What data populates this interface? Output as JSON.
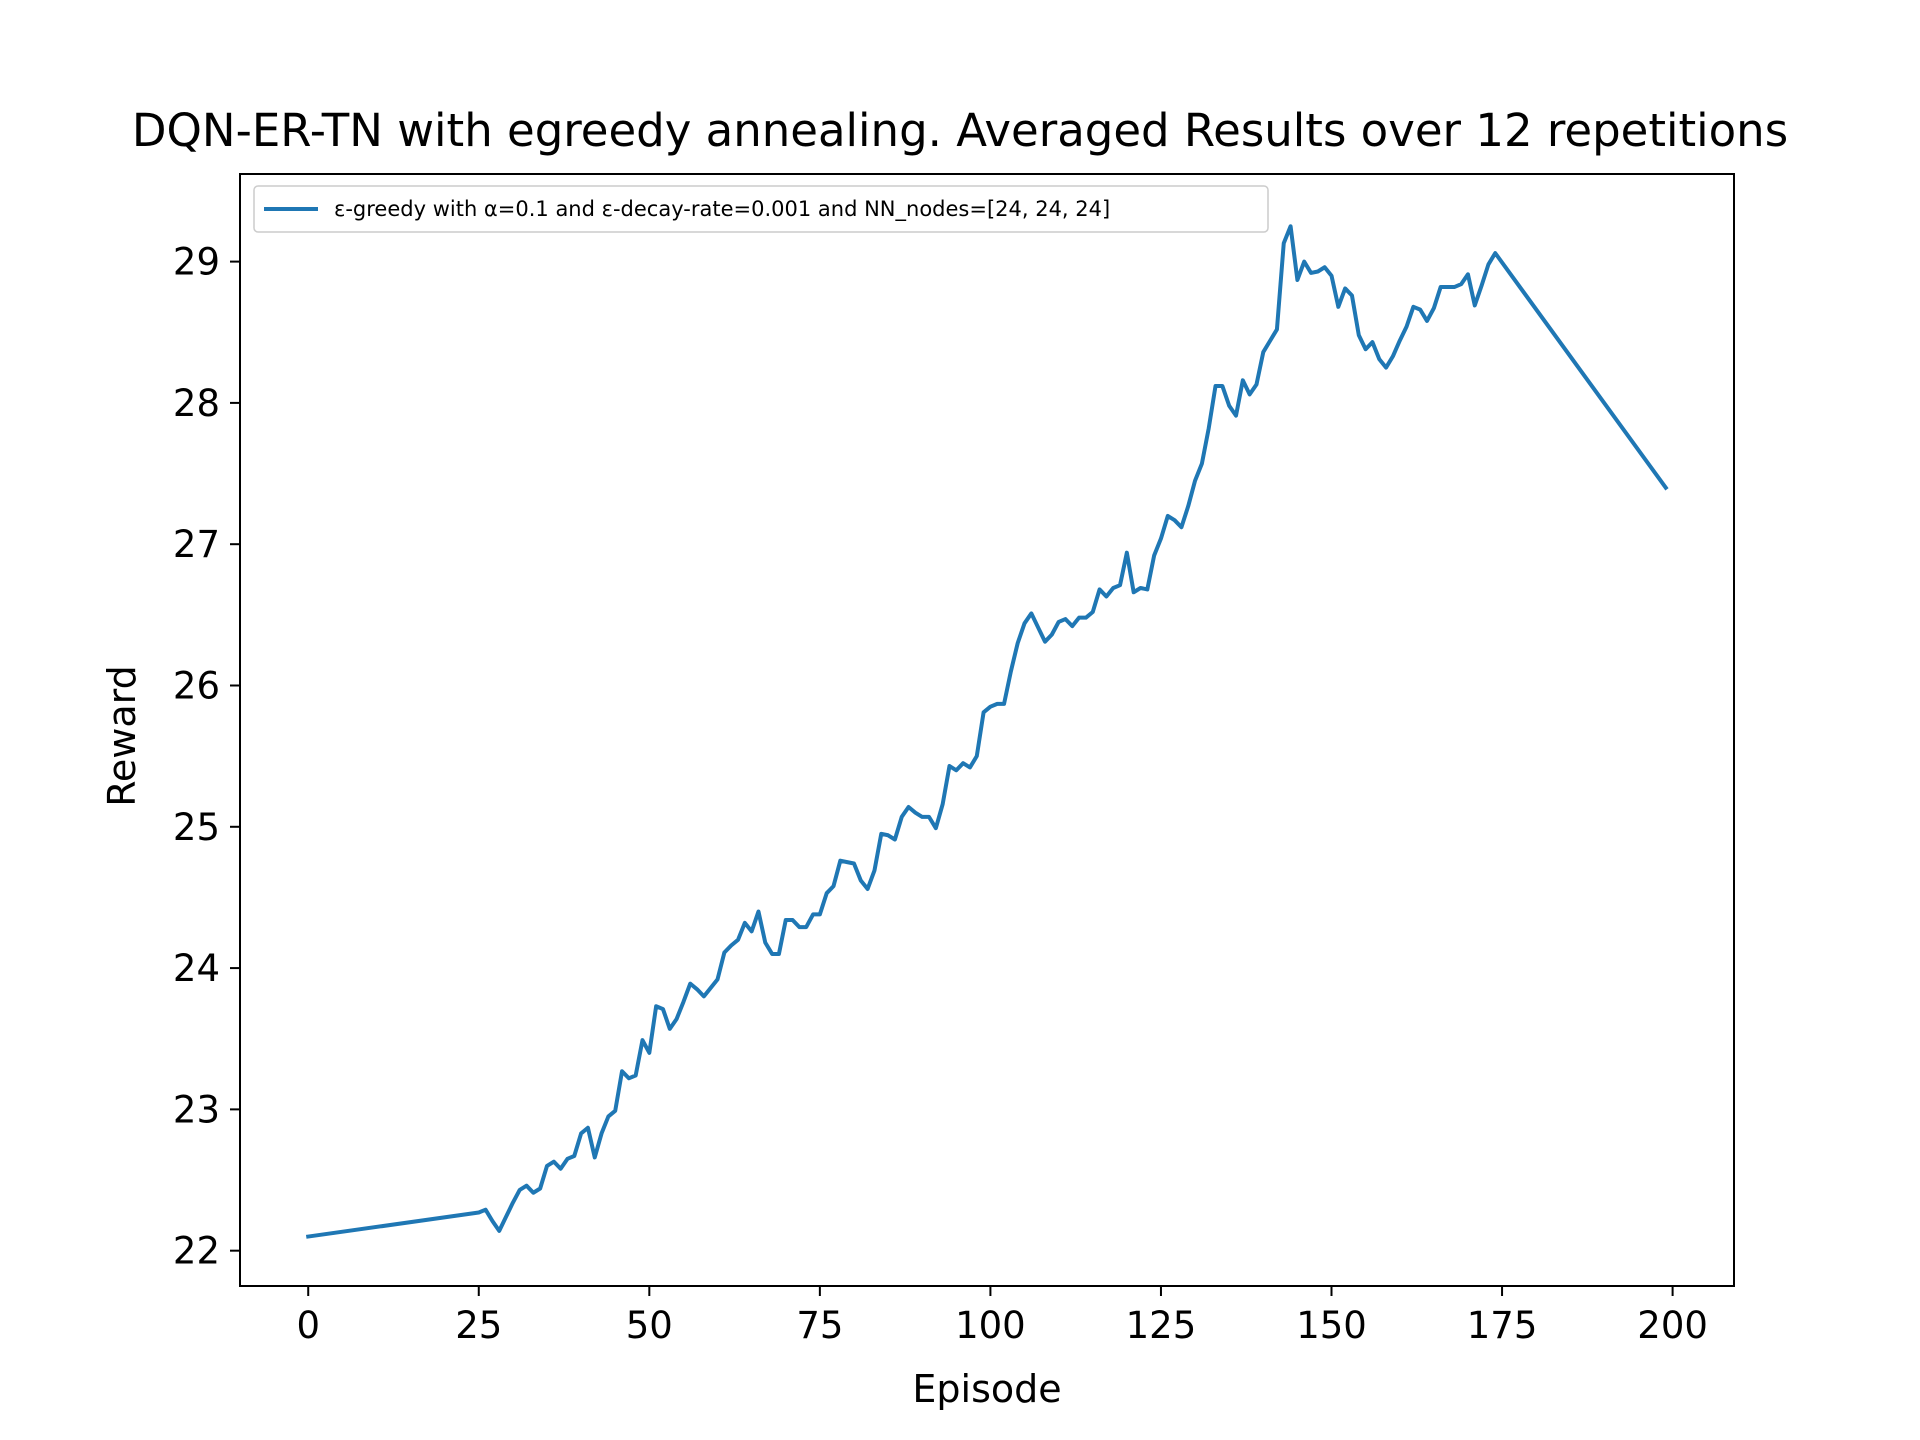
{
  "chart_data": {
    "type": "line",
    "title": "DQN-ER-TN with egreedy annealing. Averaged Results over 12 repetitions",
    "xlabel": "Episode",
    "ylabel": "Reward",
    "xlim": [
      -10,
      209
    ],
    "ylim": [
      21.75,
      29.62
    ],
    "xticks": [
      0,
      25,
      50,
      75,
      100,
      125,
      150,
      175,
      200
    ],
    "yticks": [
      22,
      23,
      24,
      25,
      26,
      27,
      28,
      29
    ],
    "xtick_labels": [
      "0",
      "25",
      "50",
      "75",
      "100",
      "125",
      "150",
      "175",
      "200"
    ],
    "ytick_labels": [
      "22",
      "23",
      "24",
      "25",
      "26",
      "27",
      "28",
      "29"
    ],
    "grid": false,
    "legend_position": "top-left",
    "series": [
      {
        "name": "ε-greedy with α=0.1 and ε-decay-rate=0.001 and NN_nodes=[24, 24, 24]",
        "color": "#1f77b4",
        "x": [
          0,
          25,
          26,
          27,
          28,
          29,
          30,
          31,
          32,
          33,
          34,
          35,
          36,
          37,
          38,
          39,
          40,
          41,
          42,
          43,
          44,
          45,
          46,
          47,
          48,
          49,
          50,
          51,
          52,
          53,
          54,
          55,
          56,
          57,
          58,
          59,
          60,
          61,
          62,
          63,
          64,
          65,
          66,
          67,
          68,
          69,
          70,
          71,
          72,
          73,
          74,
          75,
          76,
          77,
          78,
          79,
          80,
          81,
          82,
          83,
          84,
          85,
          86,
          87,
          88,
          89,
          90,
          91,
          92,
          93,
          94,
          95,
          96,
          97,
          98,
          99,
          100,
          101,
          102,
          103,
          104,
          105,
          106,
          107,
          108,
          109,
          110,
          111,
          112,
          113,
          114,
          115,
          116,
          117,
          118,
          119,
          120,
          121,
          122,
          123,
          124,
          125,
          126,
          127,
          128,
          129,
          130,
          131,
          132,
          133,
          134,
          135,
          136,
          137,
          138,
          139,
          140,
          141,
          142,
          143,
          144,
          145,
          146,
          147,
          148,
          149,
          150,
          151,
          152,
          153,
          154,
          155,
          156,
          157,
          158,
          159,
          160,
          161,
          162,
          163,
          164,
          165,
          166,
          167,
          168,
          169,
          170,
          171,
          172,
          173,
          174,
          199
        ],
        "y": [
          22.1,
          22.27,
          22.29,
          22.21,
          22.14,
          22.24,
          22.34,
          22.43,
          22.46,
          22.41,
          22.44,
          22.6,
          22.63,
          22.58,
          22.65,
          22.67,
          22.83,
          22.87,
          22.66,
          22.83,
          22.95,
          22.99,
          23.27,
          23.22,
          23.24,
          23.49,
          23.4,
          23.73,
          23.71,
          23.57,
          23.64,
          23.76,
          23.89,
          23.85,
          23.8,
          23.86,
          23.92,
          24.11,
          24.16,
          24.2,
          24.32,
          24.26,
          24.4,
          24.18,
          24.1,
          24.1,
          24.34,
          24.34,
          24.29,
          24.29,
          24.38,
          24.38,
          24.53,
          24.58,
          24.76,
          24.75,
          24.74,
          24.62,
          24.56,
          24.69,
          24.95,
          24.94,
          24.91,
          25.07,
          25.14,
          25.1,
          25.07,
          25.07,
          24.99,
          25.16,
          25.43,
          25.4,
          25.45,
          25.42,
          25.5,
          25.81,
          25.85,
          25.87,
          25.87,
          26.1,
          26.3,
          26.44,
          26.51,
          26.41,
          26.31,
          26.36,
          26.45,
          26.47,
          26.42,
          26.48,
          26.48,
          26.52,
          26.68,
          26.63,
          26.69,
          26.71,
          26.94,
          26.66,
          26.69,
          26.68,
          26.92,
          27.04,
          27.2,
          27.17,
          27.12,
          27.27,
          27.45,
          27.57,
          27.82,
          28.12,
          28.12,
          27.98,
          27.91,
          28.16,
          28.06,
          28.13,
          28.36,
          28.44,
          28.52,
          29.13,
          29.25,
          28.87,
          29.0,
          28.92,
          28.93,
          28.96,
          28.9,
          28.68,
          28.81,
          28.76,
          28.48,
          28.38,
          28.43,
          28.31,
          28.25,
          28.33,
          28.44,
          28.54,
          28.68,
          28.66,
          28.58,
          28.67,
          28.82,
          28.82,
          28.82,
          28.84,
          28.91,
          28.69,
          28.83,
          28.98,
          29.06,
          27.4
        ]
      }
    ]
  }
}
